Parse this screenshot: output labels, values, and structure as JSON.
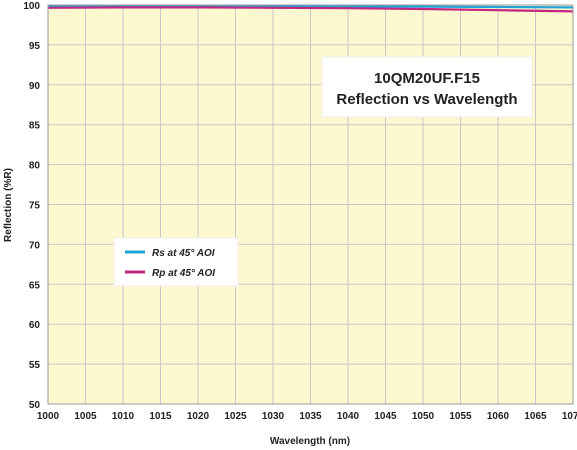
{
  "chart_data": {
    "type": "line",
    "title": "10QM20UF.F15",
    "subtitle": "Reflection vs Wavelength",
    "xlabel": "Wavelength (nm)",
    "ylabel": "Reflection (%R)",
    "xlim": [
      1000,
      1070
    ],
    "ylim": [
      50,
      100
    ],
    "xticks": [
      1000,
      1005,
      1010,
      1015,
      1020,
      1025,
      1030,
      1035,
      1040,
      1045,
      1050,
      1055,
      1060,
      1065,
      1070
    ],
    "yticks": [
      50,
      55,
      60,
      65,
      70,
      75,
      80,
      85,
      90,
      95,
      100
    ],
    "grid": true,
    "legend_position": "center-left",
    "plot_background": "#fdf8d0",
    "grid_color": "#c8c8c8",
    "x": [
      1000,
      1010,
      1020,
      1030,
      1040,
      1050,
      1060,
      1070
    ],
    "series": [
      {
        "name": "Rs at 45° AOI",
        "color": "#1fa3d9",
        "values": [
          99.8,
          99.85,
          99.85,
          99.85,
          99.8,
          99.8,
          99.75,
          99.7
        ]
      },
      {
        "name": "Rp at 45° AOI",
        "color": "#c2267f",
        "values": [
          99.65,
          99.7,
          99.7,
          99.65,
          99.6,
          99.5,
          99.35,
          99.2
        ]
      }
    ]
  }
}
